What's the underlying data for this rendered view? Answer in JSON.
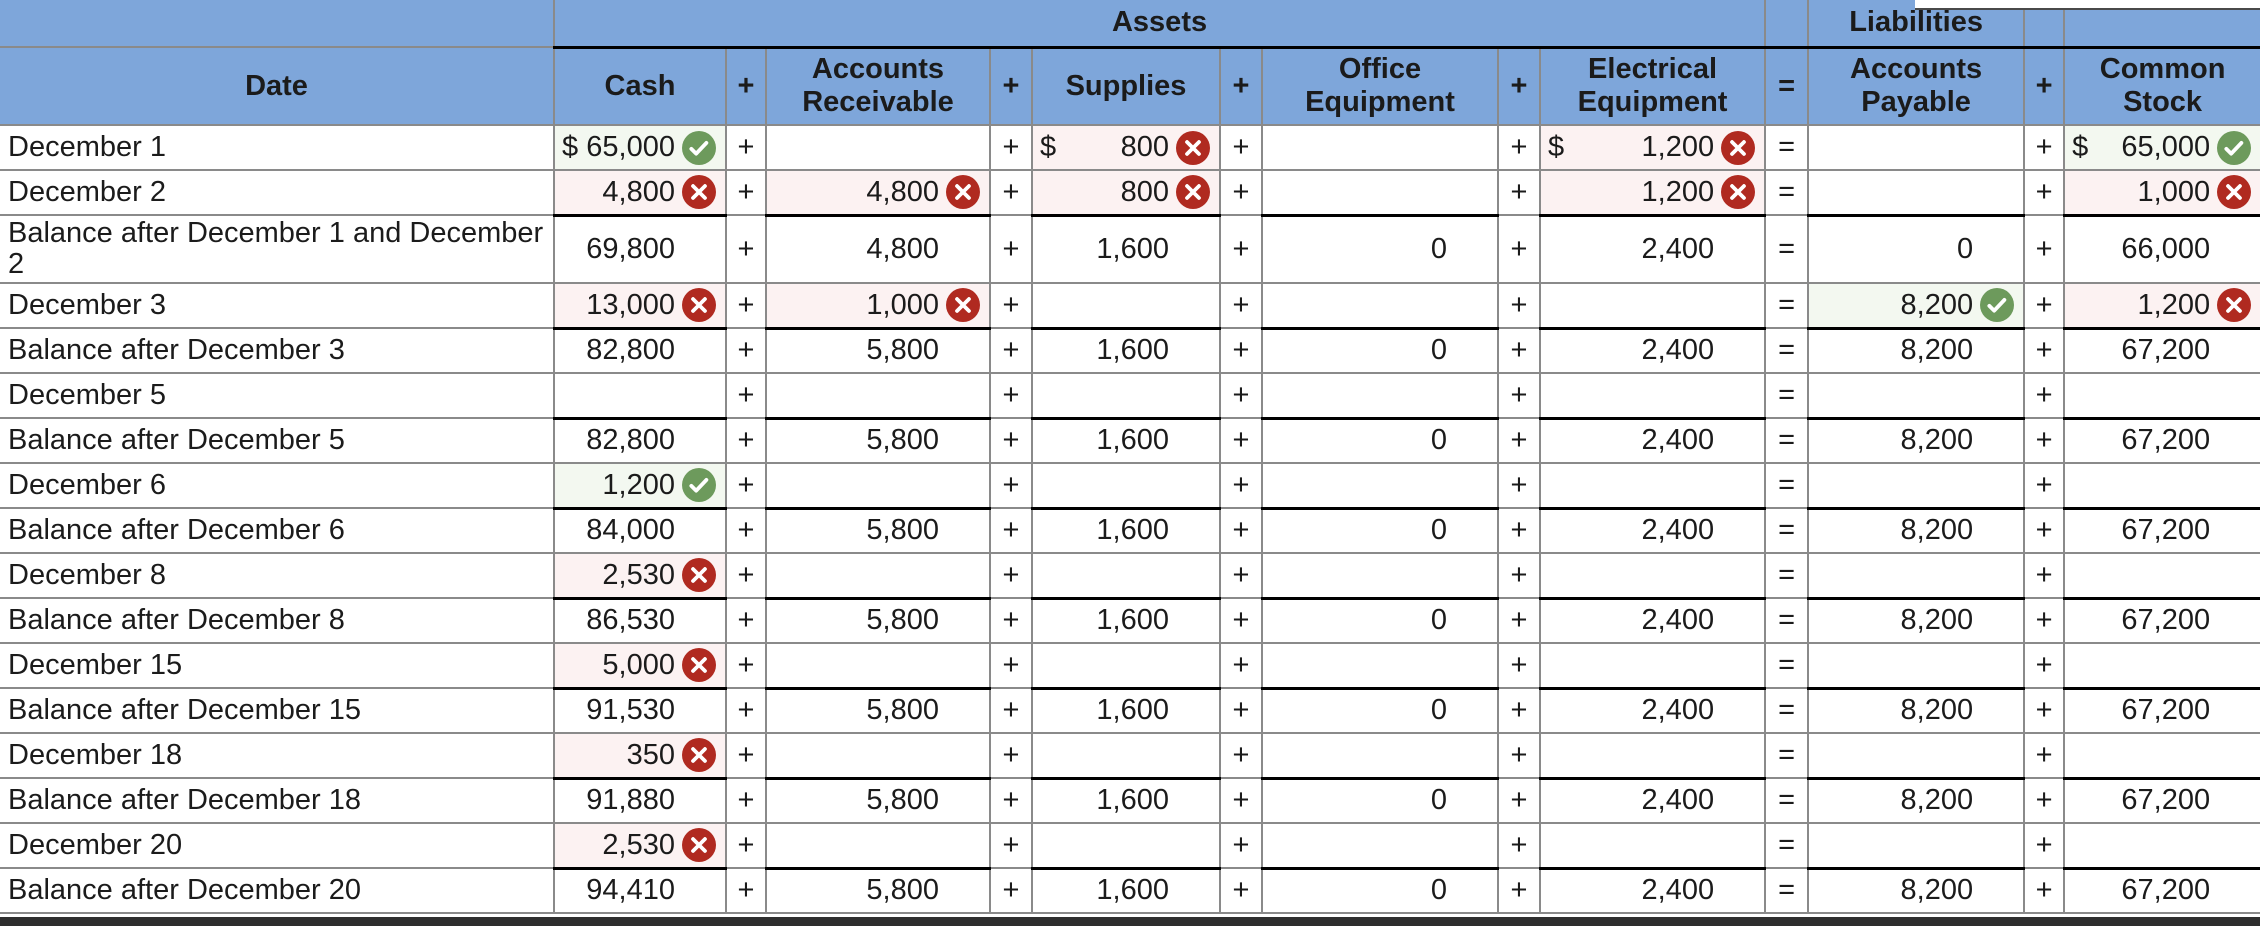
{
  "header": {
    "assets": "Assets",
    "liabilities": "Liabilities",
    "columns": [
      "Date",
      "Cash",
      "+",
      "Accounts Receivable",
      "+",
      "Supplies",
      "+",
      "Office Equipment",
      "+",
      "Electrical Equipment",
      "=",
      "Accounts Payable",
      "+",
      "Common Stock"
    ]
  },
  "icons": {
    "ok": "check-circle-icon",
    "error": "x-circle-icon"
  },
  "colors": {
    "header_blue": "#7EA6DA",
    "grid_gray": "#8a8a8a",
    "sum_line_black": "#000000",
    "check_green": "#6D9A5C",
    "x_red": "#B02A20",
    "check_cell_bg": "#F3F8F0",
    "x_cell_bg": "#FCF2F2"
  },
  "rows": [
    {
      "label": "December 1",
      "kind": "transaction",
      "cells": [
        {
          "d": "$",
          "v": "65,000",
          "s": "ok"
        },
        {},
        {
          "d": "$",
          "v": "800",
          "s": "err"
        },
        {},
        {
          "d": "$",
          "v": "1,200",
          "s": "err"
        },
        {},
        {
          "d": "$",
          "v": "65,000",
          "s": "ok"
        }
      ]
    },
    {
      "label": "December 2",
      "kind": "transaction",
      "cells": [
        {
          "v": "4,800",
          "s": "err"
        },
        {
          "v": "4,800",
          "s": "err"
        },
        {
          "v": "800",
          "s": "err"
        },
        {},
        {
          "v": "1,200",
          "s": "err"
        },
        {},
        {
          "v": "1,000",
          "s": "err"
        }
      ]
    },
    {
      "label": "Balance after December 1 and December 2",
      "kind": "balance",
      "cells": [
        {
          "v": "69,800"
        },
        {
          "v": "4,800"
        },
        {
          "v": "1,600"
        },
        {
          "v": "0"
        },
        {
          "v": "2,400"
        },
        {
          "v": "0"
        },
        {
          "v": "66,000"
        }
      ]
    },
    {
      "label": "December 3",
      "kind": "transaction",
      "cells": [
        {
          "v": "13,000",
          "s": "err"
        },
        {
          "v": "1,000",
          "s": "err"
        },
        {},
        {},
        {},
        {
          "v": "8,200",
          "s": "ok"
        },
        {
          "v": "1,200",
          "s": "err"
        }
      ]
    },
    {
      "label": "Balance after December 3",
      "kind": "balance",
      "cells": [
        {
          "v": "82,800"
        },
        {
          "v": "5,800"
        },
        {
          "v": "1,600"
        },
        {
          "v": "0"
        },
        {
          "v": "2,400"
        },
        {
          "v": "8,200"
        },
        {
          "v": "67,200"
        }
      ]
    },
    {
      "label": "December 5",
      "kind": "transaction",
      "cells": [
        {},
        {},
        {},
        {},
        {},
        {},
        {}
      ]
    },
    {
      "label": "Balance after December 5",
      "kind": "balance",
      "cells": [
        {
          "v": "82,800"
        },
        {
          "v": "5,800"
        },
        {
          "v": "1,600"
        },
        {
          "v": "0"
        },
        {
          "v": "2,400"
        },
        {
          "v": "8,200"
        },
        {
          "v": "67,200"
        }
      ]
    },
    {
      "label": "December 6",
      "kind": "transaction",
      "cells": [
        {
          "v": "1,200",
          "s": "ok"
        },
        {},
        {},
        {},
        {},
        {},
        {}
      ]
    },
    {
      "label": "Balance after December 6",
      "kind": "balance",
      "cells": [
        {
          "v": "84,000"
        },
        {
          "v": "5,800"
        },
        {
          "v": "1,600"
        },
        {
          "v": "0"
        },
        {
          "v": "2,400"
        },
        {
          "v": "8,200"
        },
        {
          "v": "67,200"
        }
      ]
    },
    {
      "label": "December 8",
      "kind": "transaction",
      "cells": [
        {
          "v": "2,530",
          "s": "err"
        },
        {},
        {},
        {},
        {},
        {},
        {}
      ]
    },
    {
      "label": "Balance after December 8",
      "kind": "balance",
      "cells": [
        {
          "v": "86,530"
        },
        {
          "v": "5,800"
        },
        {
          "v": "1,600"
        },
        {
          "v": "0"
        },
        {
          "v": "2,400"
        },
        {
          "v": "8,200"
        },
        {
          "v": "67,200"
        }
      ]
    },
    {
      "label": "December 15",
      "kind": "transaction",
      "cells": [
        {
          "v": "5,000",
          "s": "err"
        },
        {},
        {},
        {},
        {},
        {},
        {}
      ]
    },
    {
      "label": "Balance after December 15",
      "kind": "balance",
      "cells": [
        {
          "v": "91,530"
        },
        {
          "v": "5,800"
        },
        {
          "v": "1,600"
        },
        {
          "v": "0"
        },
        {
          "v": "2,400"
        },
        {
          "v": "8,200"
        },
        {
          "v": "67,200"
        }
      ]
    },
    {
      "label": "December 18",
      "kind": "transaction",
      "cells": [
        {
          "v": "350",
          "s": "err"
        },
        {},
        {},
        {},
        {},
        {},
        {}
      ]
    },
    {
      "label": "Balance after December 18",
      "kind": "balance",
      "cells": [
        {
          "v": "91,880"
        },
        {
          "v": "5,800"
        },
        {
          "v": "1,600"
        },
        {
          "v": "0"
        },
        {
          "v": "2,400"
        },
        {
          "v": "8,200"
        },
        {
          "v": "67,200"
        }
      ]
    },
    {
      "label": "December 20",
      "kind": "transaction",
      "cells": [
        {
          "v": "2,530",
          "s": "err"
        },
        {},
        {},
        {},
        {},
        {},
        {}
      ]
    },
    {
      "label": "Balance after December 20",
      "kind": "balance",
      "cells": [
        {
          "v": "94,410"
        },
        {
          "v": "5,800"
        },
        {
          "v": "1,600"
        },
        {
          "v": "0"
        },
        {
          "v": "2,400"
        },
        {
          "v": "8,200"
        },
        {
          "v": "67,200"
        }
      ]
    }
  ]
}
